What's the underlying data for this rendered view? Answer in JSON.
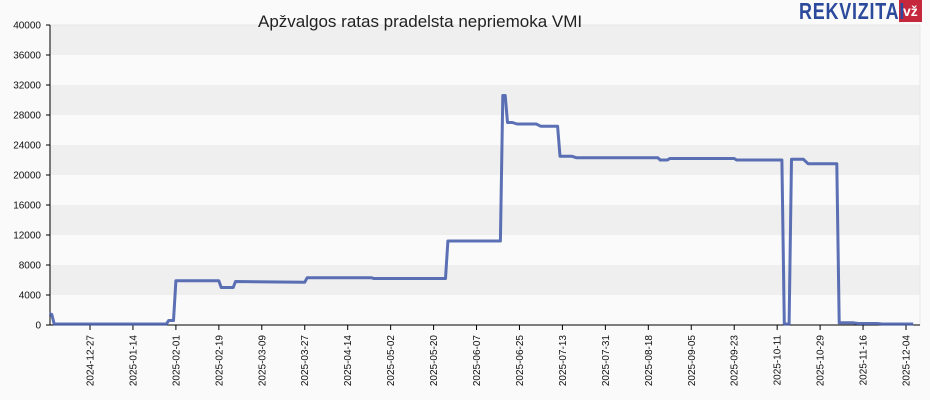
{
  "header": {
    "title": "Apžvalgos ratas pradelsta nepriemoka VMI",
    "logo_text": "REKVIZITAI",
    "logo_badge": "vž"
  },
  "colors": {
    "line": "#3f58a8",
    "band_dark": "#efefef",
    "band_light": "#fafafa",
    "logo_blue": "#2b4a9c",
    "logo_red": "#c5283d"
  },
  "chart_data": {
    "type": "line",
    "title": "Apžvalgos ratas pradelsta nepriemoka VMI",
    "xlabel": "",
    "ylabel": "",
    "ylim": [
      0,
      40000
    ],
    "y_ticks": [
      0,
      4000,
      8000,
      12000,
      16000,
      20000,
      24000,
      28000,
      32000,
      36000,
      40000
    ],
    "x_ticks": [
      "2024-12-27",
      "2025-01-14",
      "2025-02-01",
      "2025-02-19",
      "2025-03-09",
      "2025-03-27",
      "2025-04-14",
      "2025-05-02",
      "2025-05-20",
      "2025-06-07",
      "2025-06-25",
      "2025-07-13",
      "2025-07-31",
      "2025-08-18",
      "2025-09-05",
      "2025-09-23",
      "2025-10-11",
      "2025-10-29",
      "2025-11-16",
      "2025-12-04"
    ],
    "grid": "alternating horizontal bands",
    "legend": "none",
    "series": [
      {
        "name": "Pradelsta nepriemoka VMI",
        "points": [
          [
            "2024-12-10",
            1500
          ],
          [
            "2024-12-11",
            1400
          ],
          [
            "2024-12-12",
            0
          ],
          [
            "2025-01-28",
            0
          ],
          [
            "2025-01-29",
            600
          ],
          [
            "2025-01-31",
            600
          ],
          [
            "2025-02-01",
            5900
          ],
          [
            "2025-02-19",
            5900
          ],
          [
            "2025-02-20",
            5000
          ],
          [
            "2025-02-25",
            5000
          ],
          [
            "2025-02-26",
            5800
          ],
          [
            "2025-03-27",
            5700
          ],
          [
            "2025-03-28",
            6300
          ],
          [
            "2025-04-24",
            6300
          ],
          [
            "2025-04-25",
            6200
          ],
          [
            "2025-05-25",
            6200
          ],
          [
            "2025-05-26",
            11200
          ],
          [
            "2025-06-17",
            11200
          ],
          [
            "2025-06-18",
            30600
          ],
          [
            "2025-06-19",
            30600
          ],
          [
            "2025-06-20",
            27000
          ],
          [
            "2025-06-22",
            27000
          ],
          [
            "2025-06-24",
            26800
          ],
          [
            "2025-07-02",
            26800
          ],
          [
            "2025-07-04",
            26500
          ],
          [
            "2025-07-11",
            26500
          ],
          [
            "2025-07-12",
            22500
          ],
          [
            "2025-07-17",
            22500
          ],
          [
            "2025-07-19",
            22300
          ],
          [
            "2025-08-22",
            22300
          ],
          [
            "2025-08-23",
            22000
          ],
          [
            "2025-08-26",
            22000
          ],
          [
            "2025-08-27",
            22200
          ],
          [
            "2025-09-23",
            22200
          ],
          [
            "2025-09-24",
            22000
          ],
          [
            "2025-10-13",
            22000
          ],
          [
            "2025-10-14",
            0
          ],
          [
            "2025-10-16",
            0
          ],
          [
            "2025-10-17",
            22100
          ],
          [
            "2025-10-22",
            22100
          ],
          [
            "2025-10-24",
            21500
          ],
          [
            "2025-11-05",
            21500
          ],
          [
            "2025-11-06",
            300
          ],
          [
            "2025-11-12",
            300
          ],
          [
            "2025-11-14",
            200
          ],
          [
            "2025-11-22",
            200
          ],
          [
            "2025-11-24",
            100
          ],
          [
            "2025-12-07",
            100
          ]
        ]
      }
    ]
  }
}
